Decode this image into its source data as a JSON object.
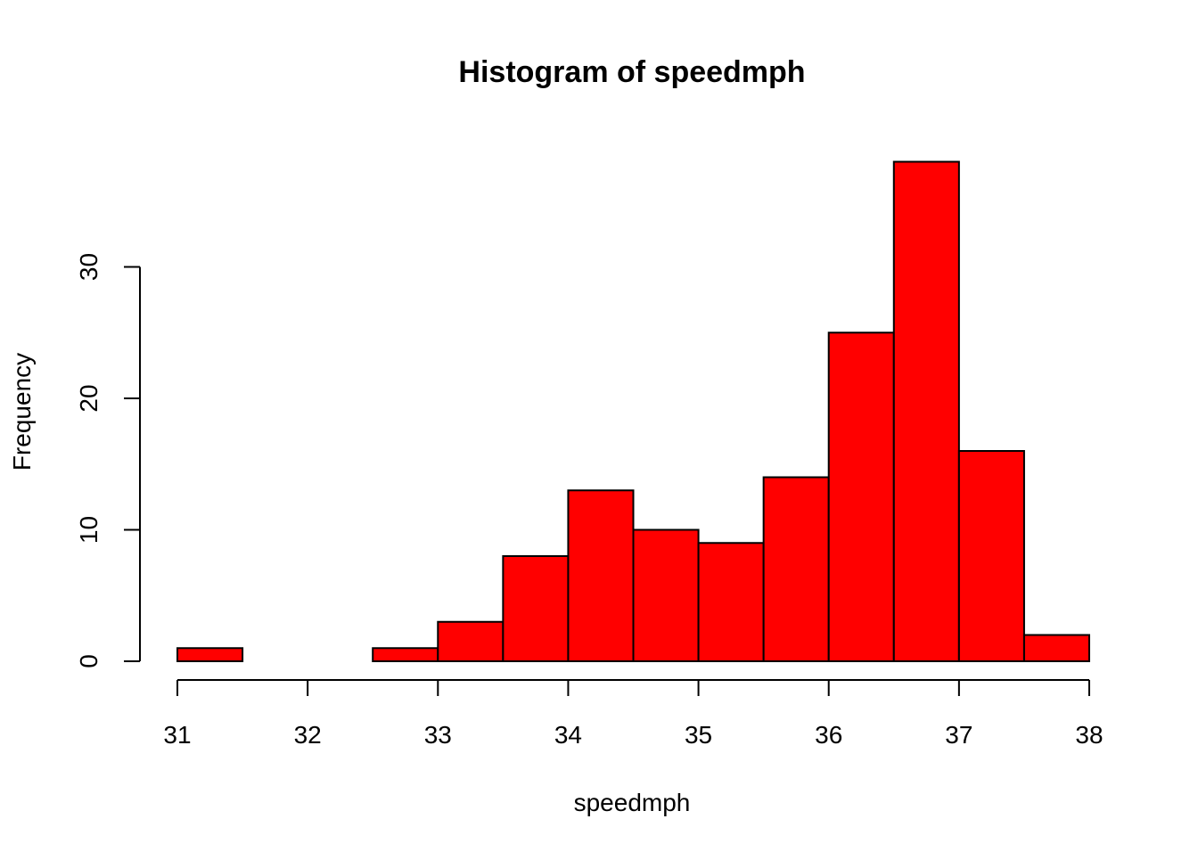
{
  "chart_data": {
    "type": "bar",
    "subtype": "histogram",
    "title": "Histogram of speedmph",
    "xlabel": "speedmph",
    "ylabel": "Frequency",
    "bins": [
      {
        "x0": 31.0,
        "x1": 31.5,
        "count": 1
      },
      {
        "x0": 31.5,
        "x1": 32.0,
        "count": 0
      },
      {
        "x0": 32.0,
        "x1": 32.5,
        "count": 0
      },
      {
        "x0": 32.5,
        "x1": 33.0,
        "count": 1
      },
      {
        "x0": 33.0,
        "x1": 33.5,
        "count": 3
      },
      {
        "x0": 33.5,
        "x1": 34.0,
        "count": 8
      },
      {
        "x0": 34.0,
        "x1": 34.5,
        "count": 13
      },
      {
        "x0": 34.5,
        "x1": 35.0,
        "count": 10
      },
      {
        "x0": 35.0,
        "x1": 35.5,
        "count": 9
      },
      {
        "x0": 35.5,
        "x1": 36.0,
        "count": 14
      },
      {
        "x0": 36.0,
        "x1": 36.5,
        "count": 25
      },
      {
        "x0": 36.5,
        "x1": 37.0,
        "count": 38
      },
      {
        "x0": 37.0,
        "x1": 37.5,
        "count": 16
      },
      {
        "x0": 37.5,
        "x1": 38.0,
        "count": 2
      }
    ],
    "x_ticks": [
      31,
      32,
      33,
      34,
      35,
      36,
      37,
      38
    ],
    "y_ticks": [
      0,
      10,
      20,
      30
    ],
    "xlim": [
      31,
      38
    ],
    "ylim": [
      0,
      38
    ],
    "grid": false,
    "legend": "none",
    "colors": {
      "bar_fill": "#ff0000",
      "bar_stroke": "#000000",
      "axis": "#000000"
    }
  }
}
